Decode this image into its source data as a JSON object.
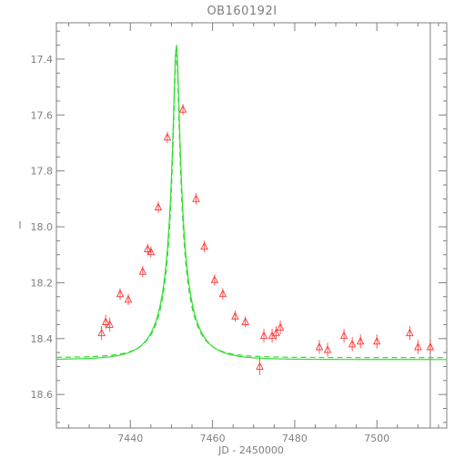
{
  "chart_data": {
    "type": "scatter",
    "title": "OB160192I",
    "xlabel": "JD - 2450000",
    "ylabel": "I",
    "xlim": [
      7422,
      7517
    ],
    "ylim": [
      18.72,
      17.27
    ],
    "y_inverted": true,
    "grid": false,
    "xticks": [
      7440,
      7460,
      7480,
      7500
    ],
    "yticks": [
      17.4,
      17.6,
      17.8,
      18.0,
      18.2,
      18.4,
      18.6
    ],
    "xtick_labels": [
      "7440",
      "7460",
      "7480",
      "7500"
    ],
    "ytick_labels": [
      "17.4",
      "17.6",
      "17.8",
      "18.0",
      "18.2",
      "18.4",
      "18.6"
    ],
    "vertical_line_x": 7513,
    "colors": {
      "points": "#ff3333",
      "model": "#33dd33",
      "axes": "#7f7f7f"
    },
    "series": [
      {
        "marker": "triangle",
        "x": [
          7433.0,
          7434.0,
          7435.0,
          7437.5,
          7439.5,
          7443.0,
          7444.2,
          7445.0,
          7446.8,
          7449.0,
          7452.8,
          7456.0,
          7458.0,
          7460.5,
          7462.5,
          7465.5,
          7468.0,
          7471.5,
          7472.5,
          7474.5,
          7475.5,
          7476.5,
          7486.0,
          7488.0,
          7492.0,
          7494.0,
          7496.0,
          7500.0,
          7508.0,
          7510.0,
          7513.0
        ],
        "y": [
          18.38,
          18.34,
          18.35,
          18.24,
          18.26,
          18.16,
          18.08,
          18.09,
          17.93,
          17.68,
          17.58,
          17.9,
          18.07,
          18.19,
          18.24,
          18.32,
          18.34,
          18.5,
          18.39,
          18.39,
          18.38,
          18.36,
          18.43,
          18.44,
          18.39,
          18.42,
          18.41,
          18.41,
          18.38,
          18.43,
          18.43
        ],
        "yerr": [
          0.025,
          0.025,
          0.025,
          0.02,
          0.02,
          0.02,
          0.02,
          0.02,
          0.02,
          0.02,
          0.02,
          0.02,
          0.02,
          0.02,
          0.02,
          0.02,
          0.02,
          0.03,
          0.025,
          0.025,
          0.025,
          0.025,
          0.025,
          0.025,
          0.025,
          0.025,
          0.025,
          0.025,
          0.025,
          0.025,
          0.025
        ]
      },
      {
        "line": "solid",
        "model": {
          "t0": 7451.2,
          "u0": 0.09,
          "tE": 7.6,
          "base": 18.475,
          "fs": 0.18
        }
      },
      {
        "line": "dashed",
        "model": {
          "t0": 7451.2,
          "u0": 0.09,
          "tE": 7.2,
          "base": 18.468,
          "fs": 0.17
        }
      }
    ]
  }
}
